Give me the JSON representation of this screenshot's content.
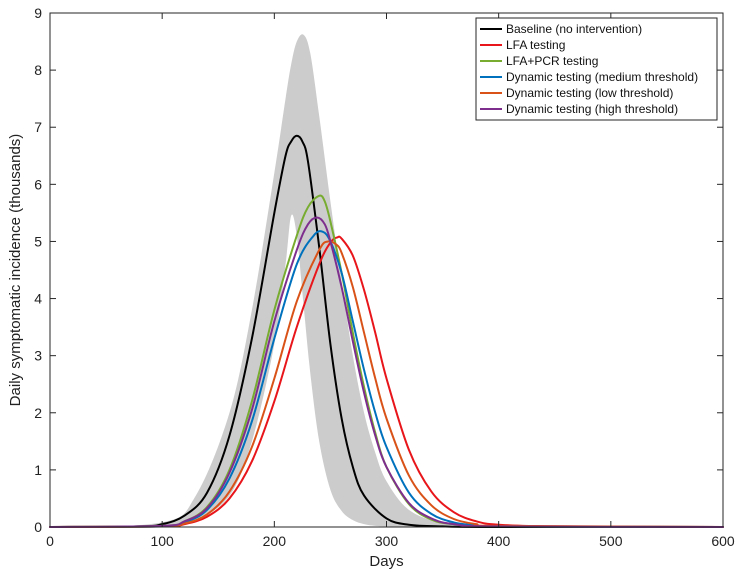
{
  "chart_data": {
    "type": "line",
    "xlabel": "Days",
    "ylabel": "Daily symptomatic incidence (thousands)",
    "xlim": [
      0,
      600
    ],
    "ylim": [
      0,
      9
    ],
    "xticks": [
      "0",
      "100",
      "200",
      "300",
      "400",
      "500",
      "600"
    ],
    "yticks": [
      "0",
      "1",
      "2",
      "3",
      "4",
      "5",
      "6",
      "7",
      "8",
      "9"
    ],
    "grid": false,
    "legend_position": "top-right",
    "uncertainty_band": {
      "color": "#cccccc",
      "x": [
        0,
        100,
        130,
        160,
        180,
        200,
        210,
        215,
        220,
        226,
        232,
        240,
        250,
        260,
        270,
        280,
        290,
        300,
        320,
        350,
        400,
        600
      ],
      "lower": [
        0,
        0.02,
        0.12,
        0.55,
        1.5,
        3.2,
        4.6,
        5.45,
        5.1,
        3.9,
        2.7,
        1.5,
        0.65,
        0.28,
        0.12,
        0.05,
        0.02,
        0.01,
        0,
        0,
        0,
        0
      ],
      "upper": [
        0,
        0.08,
        0.55,
        2.0,
        3.8,
        6.2,
        7.5,
        8.1,
        8.5,
        8.62,
        8.3,
        7.2,
        5.7,
        4.3,
        3.0,
        2.0,
        1.3,
        0.8,
        0.3,
        0.08,
        0.01,
        0
      ]
    },
    "series": [
      {
        "name": "Baseline (no intervention)",
        "color": "#000000",
        "x": [
          0,
          80,
          100,
          120,
          140,
          160,
          180,
          200,
          210,
          215,
          220,
          225,
          230,
          240,
          250,
          260,
          270,
          280,
          300,
          320,
          350,
          400,
          600
        ],
        "y": [
          0,
          0.01,
          0.05,
          0.2,
          0.6,
          1.6,
          3.3,
          5.5,
          6.5,
          6.75,
          6.85,
          6.75,
          6.4,
          4.9,
          3.2,
          1.9,
          1.05,
          0.55,
          0.15,
          0.04,
          0.01,
          0,
          0
        ]
      },
      {
        "name": "LFA testing",
        "color": "#e8161b",
        "x": [
          0,
          100,
          120,
          140,
          160,
          180,
          200,
          220,
          240,
          250,
          256,
          260,
          270,
          280,
          290,
          300,
          320,
          340,
          360,
          380,
          400,
          450,
          600
        ],
        "y": [
          0,
          0.01,
          0.05,
          0.18,
          0.5,
          1.15,
          2.2,
          3.5,
          4.6,
          4.98,
          5.07,
          5.05,
          4.75,
          4.15,
          3.4,
          2.6,
          1.35,
          0.62,
          0.26,
          0.1,
          0.04,
          0.01,
          0
        ]
      },
      {
        "name": "LFA+PCR testing",
        "color": "#77ac30",
        "x": [
          0,
          100,
          120,
          140,
          160,
          180,
          200,
          220,
          230,
          240,
          245,
          250,
          260,
          270,
          280,
          290,
          300,
          320,
          340,
          360,
          400,
          600
        ],
        "y": [
          0,
          0.02,
          0.1,
          0.35,
          1.0,
          2.2,
          3.8,
          5.1,
          5.6,
          5.8,
          5.7,
          5.35,
          4.45,
          3.4,
          2.45,
          1.65,
          1.05,
          0.4,
          0.13,
          0.05,
          0.01,
          0
        ]
      },
      {
        "name": "Dynamic testing (medium threshold)",
        "color": "#0072bd",
        "x": [
          0,
          100,
          120,
          140,
          160,
          180,
          200,
          220,
          235,
          243,
          250,
          260,
          270,
          280,
          290,
          300,
          320,
          340,
          360,
          380,
          400,
          600
        ],
        "y": [
          0,
          0.01,
          0.08,
          0.3,
          0.85,
          1.85,
          3.3,
          4.6,
          5.1,
          5.17,
          5.0,
          4.45,
          3.6,
          2.75,
          2.0,
          1.4,
          0.6,
          0.23,
          0.08,
          0.03,
          0.01,
          0
        ]
      },
      {
        "name": "Dynamic testing (low threshold)",
        "color": "#d95319",
        "x": [
          0,
          100,
          120,
          140,
          160,
          180,
          200,
          220,
          240,
          248,
          255,
          260,
          270,
          280,
          290,
          300,
          320,
          340,
          360,
          380,
          400,
          600
        ],
        "y": [
          0,
          0.01,
          0.06,
          0.22,
          0.62,
          1.4,
          2.6,
          3.95,
          4.85,
          5.0,
          4.95,
          4.8,
          4.2,
          3.4,
          2.6,
          1.9,
          0.9,
          0.38,
          0.14,
          0.05,
          0.02,
          0
        ]
      },
      {
        "name": "Dynamic testing (high threshold)",
        "color": "#7e2f8e",
        "x": [
          0,
          100,
          120,
          140,
          160,
          180,
          200,
          220,
          230,
          238,
          245,
          250,
          260,
          270,
          280,
          290,
          300,
          320,
          340,
          360,
          400,
          600
        ],
        "y": [
          0,
          0.02,
          0.1,
          0.33,
          0.95,
          2.05,
          3.6,
          4.85,
          5.3,
          5.42,
          5.3,
          5.0,
          4.2,
          3.25,
          2.35,
          1.6,
          1.05,
          0.42,
          0.15,
          0.05,
          0.01,
          0
        ]
      }
    ]
  }
}
